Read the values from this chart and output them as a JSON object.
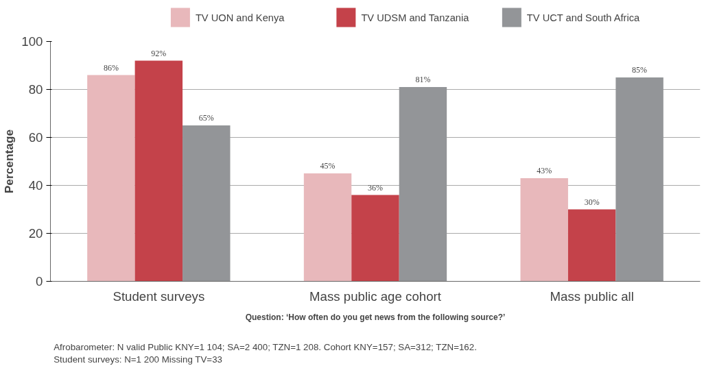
{
  "chart_data": {
    "type": "bar",
    "ylabel": "Percentage",
    "categories": [
      "Student surveys",
      "Mass public age cohort",
      "Mass public all"
    ],
    "series": [
      {
        "name": "TV UON and Kenya",
        "color": "#e8b8bb",
        "values": [
          86,
          45,
          43
        ],
        "value_labels": [
          "86%",
          "45%",
          "43%"
        ]
      },
      {
        "name": "TV UDSM and Tanzania",
        "color": "#c4424a",
        "values": [
          92,
          36,
          30
        ],
        "value_labels": [
          "92%",
          "36%",
          "30%"
        ]
      },
      {
        "name": "TV UCT and South Africa",
        "color": "#939598",
        "values": [
          65,
          81,
          85
        ],
        "value_labels": [
          "65%",
          "81%",
          "85%"
        ]
      }
    ],
    "ylim": [
      0,
      100
    ],
    "yticks": [
      0,
      20,
      40,
      60,
      80,
      100
    ],
    "grid": "y",
    "legend": "top",
    "annotations": [
      "Question: ‘How often do you get news from the following source?’",
      "Afrobarometer: N valid Public KNY=1 104; SA=2 400; TZN=1 208. Cohort KNY=157; SA=312; TZN=162.",
      "Student surveys: N=1 200 Missing TV=33"
    ]
  }
}
